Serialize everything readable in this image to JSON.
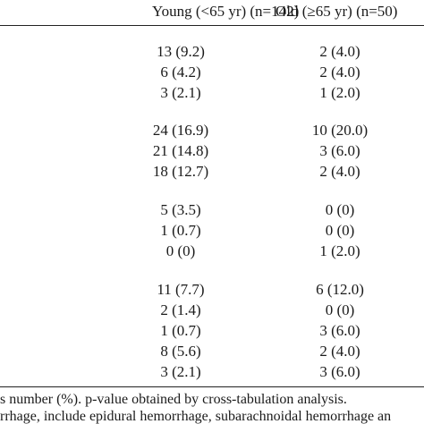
{
  "header": {
    "young": "Young (<65  yr)  (n=142)",
    "old": "Old (≥65  yr)  (n=50)"
  },
  "rows": [
    {
      "young": "13 (9.2)",
      "old": "2 (4.0)"
    },
    {
      "young": "6 (4.2)",
      "old": "2 (4.0)"
    },
    {
      "young": "3 (2.1)",
      "old": "1 (2.0)"
    },
    {
      "young": "24 (16.9)",
      "old": "10 (20.0)"
    },
    {
      "young": "21 (14.8)",
      "old": "3 (6.0)"
    },
    {
      "young": "18 (12.7)",
      "old": "2 (4.0)"
    },
    {
      "young": "5 (3.5)",
      "old": "0 (0)"
    },
    {
      "young": "1 (0.7)",
      "old": "0 (0)"
    },
    {
      "young": "0 (0)",
      "old": "1 (2.0)"
    },
    {
      "young": "11 (7.7)",
      "old": "6 (12.0)"
    },
    {
      "young": "2 (1.4)",
      "old": "0 (0)"
    },
    {
      "young": "1 (0.7)",
      "old": "3 (6.0)"
    },
    {
      "young": "8 (5.6)",
      "old": "2 (4.0)"
    },
    {
      "young": "3 (2.1)",
      "old": "3 (6.0)"
    }
  ],
  "footnotes": [
    "s number (%). p-value obtained by cross-tabulation analysis.",
    "rrhage, include epidural hemorrhage, subarachnoidal hemorrhage an"
  ]
}
